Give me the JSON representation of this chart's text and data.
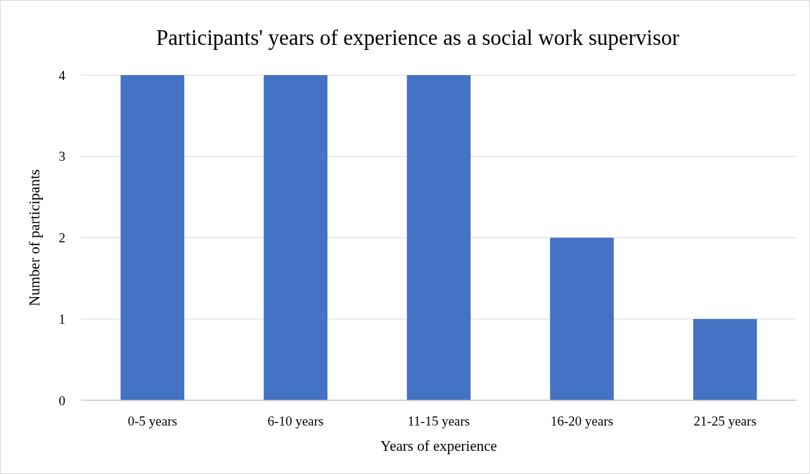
{
  "chart_data": {
    "type": "bar",
    "title": "Participants' years of experience as a social work supervisor",
    "xlabel": "Years of experience",
    "ylabel": "Number of participants",
    "categories": [
      "0-5 years",
      "6-10 years",
      "11-15 years",
      "16-20 years",
      "21-25 years"
    ],
    "values": [
      4,
      4,
      4,
      2,
      1
    ],
    "color": "#4472c4",
    "ylim": [
      0,
      4
    ],
    "yticks": [
      0,
      1,
      2,
      3,
      4
    ],
    "grid": "y"
  }
}
